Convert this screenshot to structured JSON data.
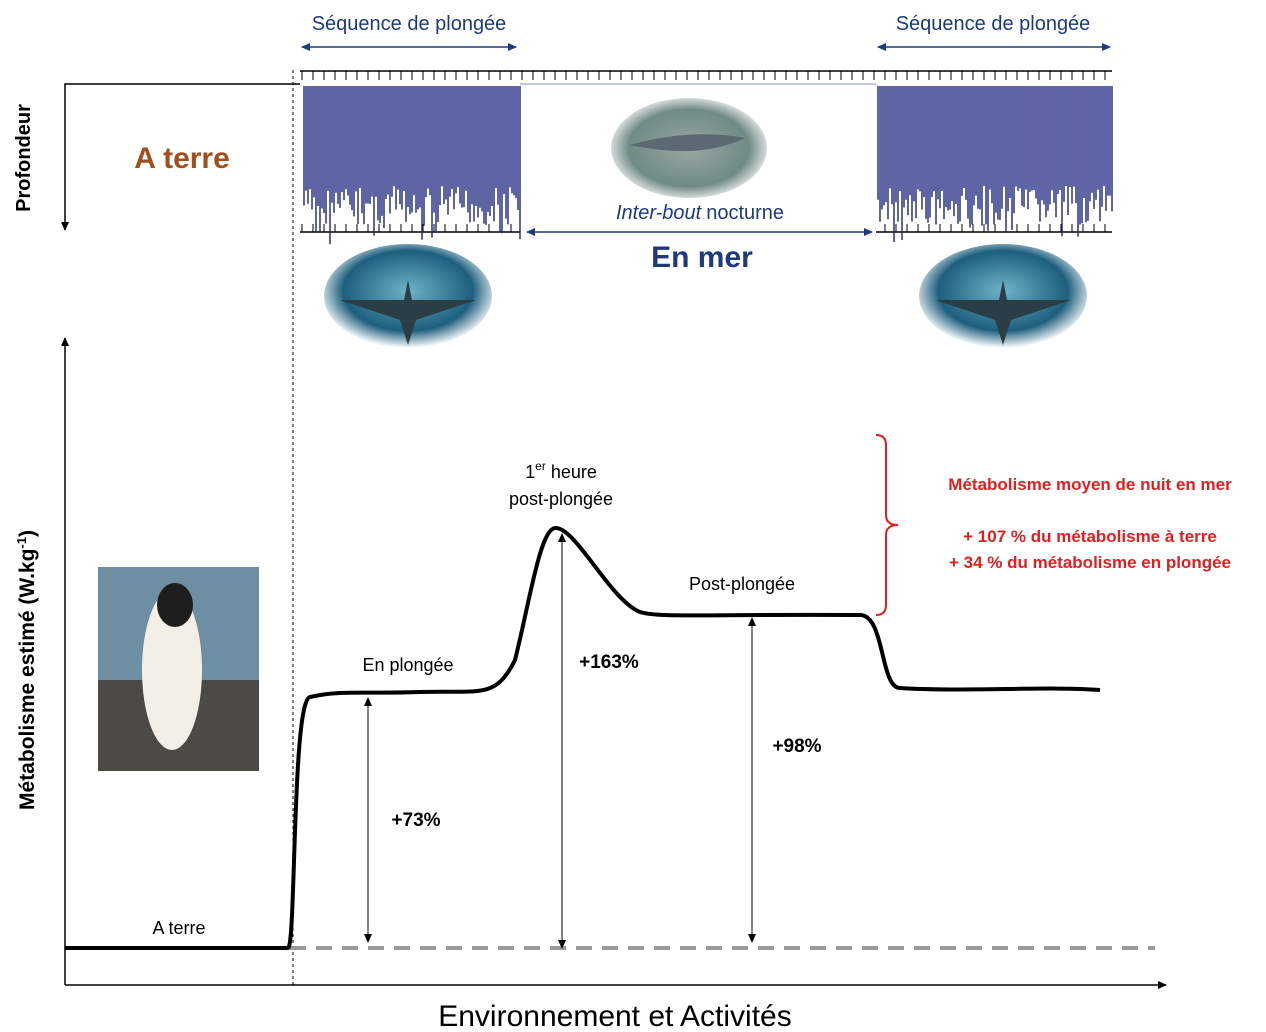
{
  "top": {
    "dive_sequence_left": "Séquence de plongée",
    "dive_sequence_right": "Séquence de plongée",
    "depth_axis": "Profondeur",
    "on_land": "A terre",
    "inter_bout_italic": "Inter-bout",
    "inter_bout_rest": "nocturne",
    "at_sea": "En mer"
  },
  "bottom": {
    "y_axis_main": "Métabolisme estimé (W.kg",
    "y_axis_sup": "-1",
    "y_axis_end": ")",
    "x_axis": "Environnement et Activités",
    "label_on_land": "A terre",
    "label_diving": "En plongée",
    "label_first_hour_1": "1",
    "label_first_hour_sup": "er",
    "label_first_hour_rest": " heure",
    "label_first_hour_2": "post-plongée",
    "label_post_dive": "Post-plongée",
    "pct_diving": "+73%",
    "pct_first_hour": "+163%",
    "pct_post_dive": "+98%",
    "note_title": "Métabolisme moyen de nuit en mer",
    "note_line_1": "+ 107 % du métabolisme à terre",
    "note_line_2": "+ 34 % du métabolisme en plongée"
  }
}
